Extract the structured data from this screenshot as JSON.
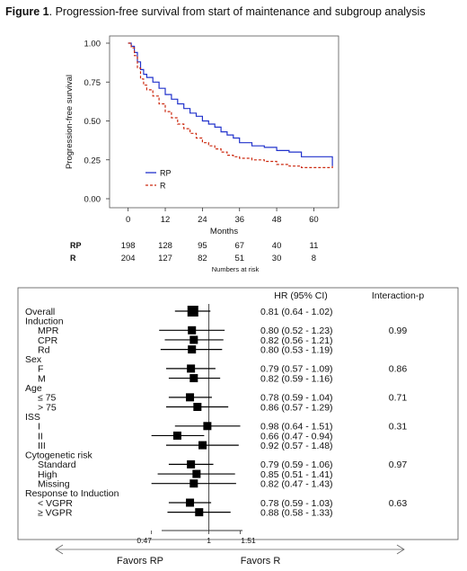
{
  "figure": {
    "label": "Figure 1",
    "caption": ". Progression-free survival from start of maintenance and subgroup analysis"
  },
  "chart_data": [
    {
      "type": "line",
      "ylabel": "Progression-free survival",
      "xlabel": "Months",
      "xlim": [
        -6,
        68
      ],
      "ylim": [
        0,
        1
      ],
      "xticks": [
        "0",
        "12",
        "24",
        "36",
        "48",
        "60"
      ],
      "yticks": [
        "0.00",
        "0.25",
        "0.50",
        "0.75",
        "1.00"
      ],
      "grid": false,
      "legend_position": "bottom-left",
      "series": [
        {
          "name": "RP",
          "color": "#2233cc",
          "dash": false,
          "x": [
            0,
            1,
            2,
            3,
            4,
            5,
            6,
            8,
            10,
            12,
            14,
            16,
            18,
            20,
            22,
            24,
            26,
            28,
            30,
            32,
            34,
            36,
            40,
            44,
            48,
            52,
            56,
            60,
            64,
            66
          ],
          "y": [
            1.0,
            0.98,
            0.94,
            0.88,
            0.83,
            0.8,
            0.78,
            0.75,
            0.71,
            0.67,
            0.64,
            0.61,
            0.58,
            0.55,
            0.53,
            0.5,
            0.48,
            0.46,
            0.43,
            0.41,
            0.39,
            0.36,
            0.34,
            0.33,
            0.31,
            0.3,
            0.27,
            0.27,
            0.27,
            0.21
          ]
        },
        {
          "name": "R",
          "color": "#cc2a10",
          "dash": true,
          "x": [
            0,
            1,
            2,
            3,
            4,
            5,
            6,
            8,
            10,
            12,
            14,
            16,
            18,
            20,
            22,
            24,
            26,
            28,
            30,
            32,
            34,
            36,
            40,
            44,
            48,
            52,
            56,
            60,
            64,
            66
          ],
          "y": [
            1.0,
            0.97,
            0.92,
            0.84,
            0.77,
            0.73,
            0.7,
            0.66,
            0.61,
            0.56,
            0.52,
            0.48,
            0.45,
            0.42,
            0.39,
            0.36,
            0.34,
            0.32,
            0.3,
            0.28,
            0.27,
            0.26,
            0.25,
            0.24,
            0.22,
            0.21,
            0.2,
            0.2,
            0.2,
            0.21
          ]
        }
      ],
      "numbers_at_risk": {
        "title": "Numbers at risk",
        "rows": [
          {
            "label": "RP",
            "values": [
              "198",
              "128",
              "95",
              "67",
              "40",
              "11"
            ]
          },
          {
            "label": "R",
            "values": [
              "204",
              "127",
              "82",
              "51",
              "30",
              "8"
            ]
          }
        ]
      }
    },
    {
      "type": "forest",
      "header_hr": "HR (95% CI)",
      "header_p": "Interaction-p",
      "xscale": "log",
      "xlim": [
        0.4,
        1.75
      ],
      "reference": 1,
      "xticks": [
        "0.47",
        "1",
        "1.51"
      ],
      "favors_left": "Favors RP",
      "favors_right": "Favors R",
      "rows": [
        {
          "label": "Overall",
          "indent": false,
          "hr": 0.81,
          "lo": 0.64,
          "hi": 1.02,
          "text": "0.81 (0.64 - 1.02)",
          "p": ""
        },
        {
          "label": "Induction",
          "indent": false
        },
        {
          "label": "MPR",
          "indent": true,
          "hr": 0.8,
          "lo": 0.52,
          "hi": 1.23,
          "text": "0.80 (0.52 - 1.23)",
          "p": "0.99"
        },
        {
          "label": "CPR",
          "indent": true,
          "hr": 0.82,
          "lo": 0.56,
          "hi": 1.21,
          "text": "0.82 (0.56 - 1.21)",
          "p": ""
        },
        {
          "label": "Rd",
          "indent": true,
          "hr": 0.8,
          "lo": 0.53,
          "hi": 1.19,
          "text": "0.80 (0.53 - 1.19)",
          "p": ""
        },
        {
          "label": "Sex",
          "indent": false
        },
        {
          "label": "F",
          "indent": true,
          "hr": 0.79,
          "lo": 0.57,
          "hi": 1.09,
          "text": "0.79 (0.57 - 1.09)",
          "p": "0.86"
        },
        {
          "label": "M",
          "indent": true,
          "hr": 0.82,
          "lo": 0.59,
          "hi": 1.16,
          "text": "0.82 (0.59 - 1.16)",
          "p": ""
        },
        {
          "label": "Age",
          "indent": false
        },
        {
          "label": "≤ 75",
          "indent": true,
          "hr": 0.78,
          "lo": 0.59,
          "hi": 1.04,
          "text": "0.78 (0.59 - 1.04)",
          "p": "0.71"
        },
        {
          "label": "> 75",
          "indent": true,
          "hr": 0.86,
          "lo": 0.57,
          "hi": 1.29,
          "text": "0.86 (0.57 - 1.29)",
          "p": ""
        },
        {
          "label": "ISS",
          "indent": false
        },
        {
          "label": "I",
          "indent": true,
          "hr": 0.98,
          "lo": 0.64,
          "hi": 1.51,
          "text": "0.98 (0.64 - 1.51)",
          "p": "0.31"
        },
        {
          "label": "II",
          "indent": true,
          "hr": 0.66,
          "lo": 0.47,
          "hi": 0.94,
          "text": "0.66 (0.47 - 0.94)",
          "p": ""
        },
        {
          "label": "III",
          "indent": true,
          "hr": 0.92,
          "lo": 0.57,
          "hi": 1.48,
          "text": "0.92 (0.57 - 1.48)",
          "p": ""
        },
        {
          "label": "Cytogenetic risk",
          "indent": false
        },
        {
          "label": "Standard",
          "indent": true,
          "hr": 0.79,
          "lo": 0.59,
          "hi": 1.06,
          "text": "0.79 (0.59 - 1.06)",
          "p": "0.97"
        },
        {
          "label": "High",
          "indent": true,
          "hr": 0.85,
          "lo": 0.51,
          "hi": 1.41,
          "text": "0.85 (0.51 - 1.41)",
          "p": ""
        },
        {
          "label": "Missing",
          "indent": true,
          "hr": 0.82,
          "lo": 0.47,
          "hi": 1.43,
          "text": "0.82 (0.47 - 1.43)",
          "p": ""
        },
        {
          "label": "Response to Induction",
          "indent": false
        },
        {
          "label": "< VGPR",
          "indent": true,
          "hr": 0.78,
          "lo": 0.59,
          "hi": 1.03,
          "text": "0.78 (0.59 - 1.03)",
          "p": "0.63"
        },
        {
          "label": "≥ VGPR",
          "indent": true,
          "hr": 0.88,
          "lo": 0.58,
          "hi": 1.33,
          "text": "0.88 (0.58 - 1.33)",
          "p": ""
        }
      ]
    }
  ]
}
